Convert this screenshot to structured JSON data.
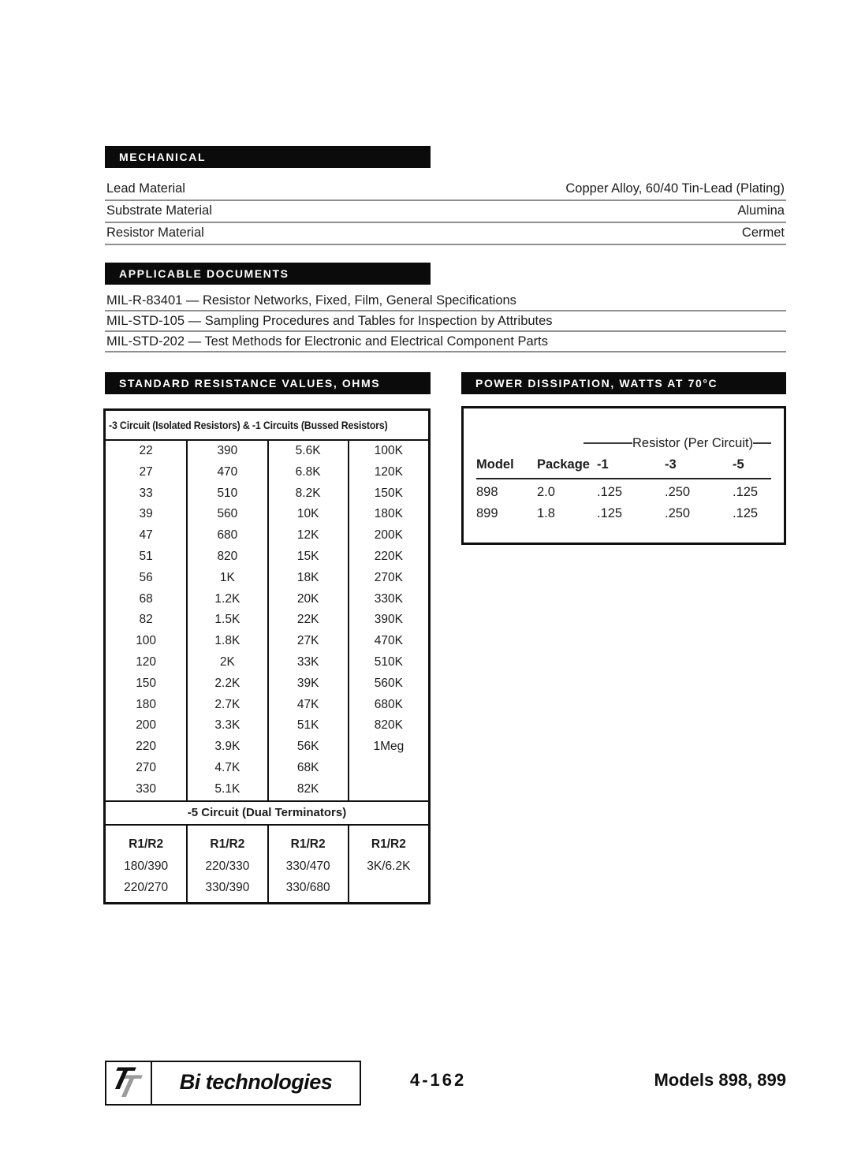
{
  "page": {
    "background": "#ffffff",
    "text_color": "#1c1c1c",
    "bar_background": "#0b0b0b",
    "bar_text_color": "#ffffff",
    "rule_color": "#8f8f8f"
  },
  "sections": {
    "mechanical": {
      "title": "MECHANICAL",
      "rows": [
        {
          "label": "Lead Material",
          "value": "Copper Alloy, 60/40 Tin-Lead (Plating)"
        },
        {
          "label": "Substrate Material",
          "value": "Alumina"
        },
        {
          "label": "Resistor Material",
          "value": "Cermet"
        }
      ]
    },
    "applicable_documents": {
      "title": "APPLICABLE DOCUMENTS",
      "rows": [
        "MIL-R-83401 — Resistor Networks, Fixed, Film, General Specifications",
        "MIL-STD-105 — Sampling Procedures and Tables for Inspection by Attributes",
        "MIL-STD-202 — Test Methods for Electronic and Electrical Component Parts"
      ]
    },
    "standard_resistance": {
      "title": "STANDARD RESISTANCE VALUES, OHMS",
      "group1_header": "-3 Circuit (Isolated Resistors) & -1 Circuits (Bussed Resistors)",
      "grid": [
        [
          "22",
          "390",
          "5.6K",
          "100K"
        ],
        [
          "27",
          "470",
          "6.8K",
          "120K"
        ],
        [
          "33",
          "510",
          "8.2K",
          "150K"
        ],
        [
          "39",
          "560",
          "10K",
          "180K"
        ],
        [
          "47",
          "680",
          "12K",
          "200K"
        ],
        [
          "51",
          "820",
          "15K",
          "220K"
        ],
        [
          "56",
          "1K",
          "18K",
          "270K"
        ],
        [
          "68",
          "1.2K",
          "20K",
          "330K"
        ],
        [
          "82",
          "1.5K",
          "22K",
          "390K"
        ],
        [
          "100",
          "1.8K",
          "27K",
          "470K"
        ],
        [
          "120",
          "2K",
          "33K",
          "510K"
        ],
        [
          "150",
          "2.2K",
          "39K",
          "560K"
        ],
        [
          "180",
          "2.7K",
          "47K",
          "680K"
        ],
        [
          "200",
          "3.3K",
          "51K",
          "820K"
        ],
        [
          "220",
          "3.9K",
          "56K",
          "1Meg"
        ],
        [
          "270",
          "4.7K",
          "68K",
          ""
        ],
        [
          "330",
          "5.1K",
          "82K",
          ""
        ]
      ],
      "group2_header": "-5 Circuit (Dual Terminators)",
      "r1r2_headers": [
        "R1/R2",
        "R1/R2",
        "R1/R2",
        "R1/R2"
      ],
      "r1r2_rows": [
        [
          "180/390",
          "220/330",
          "330/470",
          "3K/6.2K"
        ],
        [
          "220/270",
          "330/390",
          "330/680",
          ""
        ]
      ]
    },
    "power_dissipation": {
      "title": "POWER DISSIPATION, WATTS AT 70°C",
      "group_label": "Resistor (Per Circuit)",
      "columns": [
        "Model",
        "Package",
        "-1",
        "-3",
        "-5"
      ],
      "rows": [
        [
          "898",
          "2.0",
          ".125",
          ".250",
          ".125"
        ],
        [
          "899",
          "1.8",
          ".125",
          ".250",
          ".125"
        ]
      ]
    }
  },
  "footer": {
    "logo_mark_letter": "T",
    "logo_text": "Bi technologies",
    "page_number": "4-162",
    "models": "Models 898, 899"
  }
}
